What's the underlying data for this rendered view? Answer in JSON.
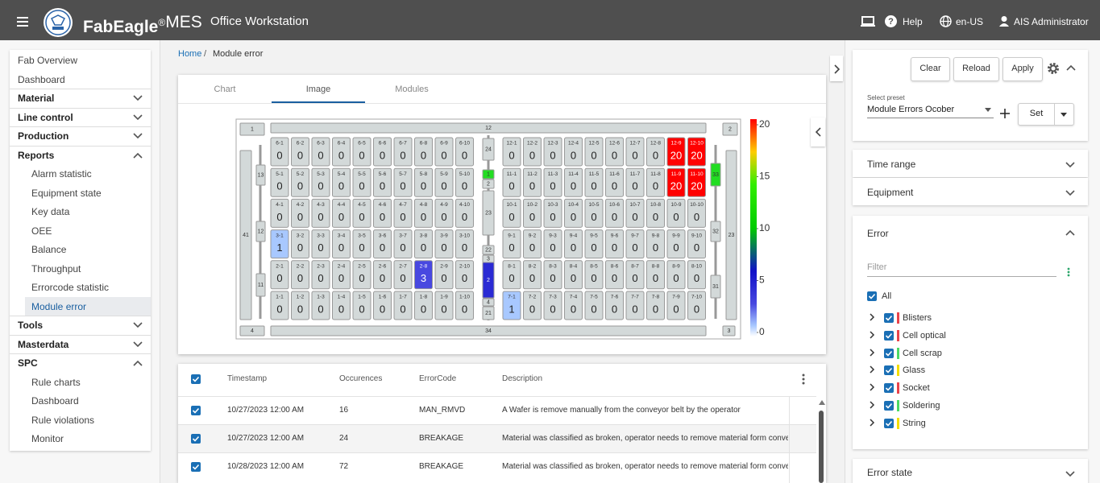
{
  "header": {
    "brand": "FabEagle",
    "brand_mark": "®",
    "brand_suffix": "MES",
    "app": "Office Workstation",
    "help": "Help",
    "language": "en-US",
    "user": "AIS Administrator"
  },
  "sidebar": {
    "items": [
      {
        "label": "Fab Overview",
        "kind": "link"
      },
      {
        "label": "Dashboard",
        "kind": "link"
      },
      {
        "label": "Material",
        "kind": "group",
        "open": false
      },
      {
        "label": "Line control",
        "kind": "group",
        "open": false
      },
      {
        "label": "Production",
        "kind": "group",
        "open": false
      },
      {
        "label": "Reports",
        "kind": "group",
        "open": true
      },
      {
        "label": "Alarm statistic",
        "kind": "sub"
      },
      {
        "label": "Equipment state",
        "kind": "sub"
      },
      {
        "label": "Key data",
        "kind": "sub"
      },
      {
        "label": "OEE",
        "kind": "sub"
      },
      {
        "label": "Balance",
        "kind": "sub"
      },
      {
        "label": "Throughput",
        "kind": "sub"
      },
      {
        "label": "Errorcode statistic",
        "kind": "sub"
      },
      {
        "label": "Module error",
        "kind": "sub",
        "selected": true
      },
      {
        "label": "Tools",
        "kind": "group",
        "open": false
      },
      {
        "label": "Masterdata",
        "kind": "group",
        "open": false
      },
      {
        "label": "SPC",
        "kind": "group",
        "open": true
      },
      {
        "label": "Rule charts",
        "kind": "sub"
      },
      {
        "label": "Dashboard",
        "kind": "sub"
      },
      {
        "label": "Rule violations",
        "kind": "sub"
      },
      {
        "label": "Monitor",
        "kind": "sub"
      }
    ]
  },
  "breadcrumb": {
    "items": [
      "Home",
      "Module error"
    ],
    "separator": "/"
  },
  "tabs": {
    "items": [
      "Chart",
      "Image",
      "Modules"
    ],
    "active": 1
  },
  "image": {
    "left_rows": [
      {
        "labels": [
          "6-1",
          "6-2",
          "6-3",
          "6-4",
          "6-5",
          "6-6",
          "6-7",
          "6-8",
          "6-9",
          "6-10"
        ],
        "values": [
          0,
          0,
          0,
          0,
          0,
          0,
          0,
          0,
          0,
          0
        ]
      },
      {
        "labels": [
          "5-1",
          "5-2",
          "5-3",
          "5-4",
          "5-5",
          "5-6",
          "5-7",
          "5-8",
          "5-9",
          "5-10"
        ],
        "values": [
          0,
          0,
          0,
          0,
          0,
          0,
          0,
          0,
          0,
          0
        ]
      },
      {
        "labels": [
          "4-1",
          "4-2",
          "4-3",
          "4-4",
          "4-5",
          "4-6",
          "4-7",
          "4-8",
          "4-9",
          "4-10"
        ],
        "values": [
          0,
          0,
          0,
          0,
          0,
          0,
          0,
          0,
          0,
          0
        ]
      },
      {
        "labels": [
          "3-1",
          "3-2",
          "3-3",
          "3-4",
          "3-5",
          "3-6",
          "3-7",
          "3-8",
          "3-9",
          "3-10"
        ],
        "values": [
          1,
          0,
          0,
          0,
          0,
          0,
          0,
          0,
          0,
          0
        ]
      },
      {
        "labels": [
          "2-1",
          "2-2",
          "2-3",
          "2-4",
          "2-5",
          "2-6",
          "2-7",
          "2-8",
          "2-9",
          "2-10"
        ],
        "values": [
          0,
          0,
          0,
          0,
          0,
          0,
          0,
          3,
          0,
          0
        ]
      },
      {
        "labels": [
          "1-1",
          "1-2",
          "1-3",
          "1-4",
          "1-5",
          "1-6",
          "1-7",
          "1-8",
          "1-9",
          "1-10"
        ],
        "values": [
          0,
          0,
          0,
          0,
          0,
          0,
          0,
          0,
          0,
          0
        ]
      }
    ],
    "right_rows": [
      {
        "labels": [
          "12-1",
          "12-2",
          "12-3",
          "12-4",
          "12-5",
          "12-6",
          "12-7",
          "12-8",
          "12-9",
          "12-10"
        ],
        "values": [
          0,
          0,
          0,
          0,
          0,
          0,
          0,
          0,
          20,
          20
        ]
      },
      {
        "labels": [
          "11-1",
          "11-2",
          "11-3",
          "11-4",
          "11-5",
          "11-6",
          "11-7",
          "11-8",
          "11-9",
          "11-10"
        ],
        "values": [
          0,
          0,
          0,
          0,
          0,
          0,
          0,
          0,
          20,
          20
        ]
      },
      {
        "labels": [
          "10-1",
          "10-2",
          "10-3",
          "10-4",
          "10-5",
          "10-6",
          "10-7",
          "10-8",
          "10-9",
          "10-10"
        ],
        "values": [
          0,
          0,
          0,
          0,
          0,
          0,
          0,
          0,
          0,
          0
        ]
      },
      {
        "labels": [
          "9-1",
          "9-2",
          "9-3",
          "9-4",
          "9-5",
          "9-6",
          "9-7",
          "9-8",
          "9-9",
          "9-10"
        ],
        "values": [
          0,
          0,
          0,
          0,
          0,
          0,
          0,
          0,
          0,
          0
        ]
      },
      {
        "labels": [
          "8-1",
          "8-2",
          "8-3",
          "8-4",
          "8-5",
          "8-6",
          "8-7",
          "8-8",
          "8-9",
          "8-10"
        ],
        "values": [
          0,
          0,
          0,
          0,
          0,
          0,
          0,
          0,
          0,
          0
        ]
      },
      {
        "labels": [
          "7-1",
          "7-2",
          "7-3",
          "7-4",
          "7-5",
          "7-6",
          "7-7",
          "7-8",
          "7-9",
          "7-10"
        ],
        "values": [
          1,
          0,
          0,
          0,
          0,
          0,
          0,
          0,
          0,
          0
        ]
      }
    ],
    "frame": [
      {
        "label": "1"
      },
      {
        "label": "12"
      },
      {
        "label": "2"
      },
      {
        "label": "41"
      },
      {
        "label": "13"
      },
      {
        "label": "12"
      },
      {
        "label": "11"
      },
      {
        "label": "24"
      },
      {
        "label": "1",
        "color": "#22dd22"
      },
      {
        "label": "2"
      },
      {
        "label": "23"
      },
      {
        "label": "22"
      },
      {
        "label": "3"
      },
      {
        "label": "2",
        "color": "#2a2ad4"
      },
      {
        "label": "4"
      },
      {
        "label": "21"
      },
      {
        "label": "33",
        "color": "#22dd22"
      },
      {
        "label": "32"
      },
      {
        "label": "31"
      },
      {
        "label": "23"
      },
      {
        "label": "3"
      },
      {
        "label": "4"
      },
      {
        "label": "34"
      }
    ],
    "colorbar": {
      "lim": [
        0,
        20
      ],
      "ticks": [
        0,
        5,
        10,
        15,
        20
      ]
    }
  },
  "table": {
    "columns": [
      "Timestamp",
      "Occurences",
      "ErrorCode",
      "Description"
    ],
    "rows": [
      [
        "10/27/2023 12:00 AM",
        16,
        "MAN_RMVD",
        "A Wafer is remove manually from the conveyor belt by the operator"
      ],
      [
        "10/27/2023 12:00 AM",
        24,
        "BREAKAGE",
        "Material was classified as broken, operator needs to remove material form conveyor b"
      ],
      [
        "10/28/2023 12:00 AM",
        72,
        "BREAKAGE",
        "Material was classified as broken, operator needs to remove material form conveyor b"
      ]
    ]
  },
  "filters": {
    "buttons": [
      "Clear",
      "Reload",
      "Apply"
    ],
    "preset_label": "Select preset",
    "preset": "Module Errors Ocober",
    "set": "Set",
    "sections": [
      "Time range",
      "Equipment"
    ],
    "error": {
      "title": "Error",
      "filter_placeholder": "Filter",
      "all": "All",
      "items": [
        {
          "name": "Blisters",
          "color": "#e8444c"
        },
        {
          "name": "Cell optical",
          "color": "#e8444c"
        },
        {
          "name": "Cell scrap",
          "color": "#4cd964"
        },
        {
          "name": "Glass",
          "color": "#f2de00"
        },
        {
          "name": "Socket",
          "color": "#e8444c"
        },
        {
          "name": "Soldering",
          "color": "#4cd964"
        },
        {
          "name": "String",
          "color": "#f2de00"
        }
      ]
    },
    "error_state": "Error state"
  }
}
